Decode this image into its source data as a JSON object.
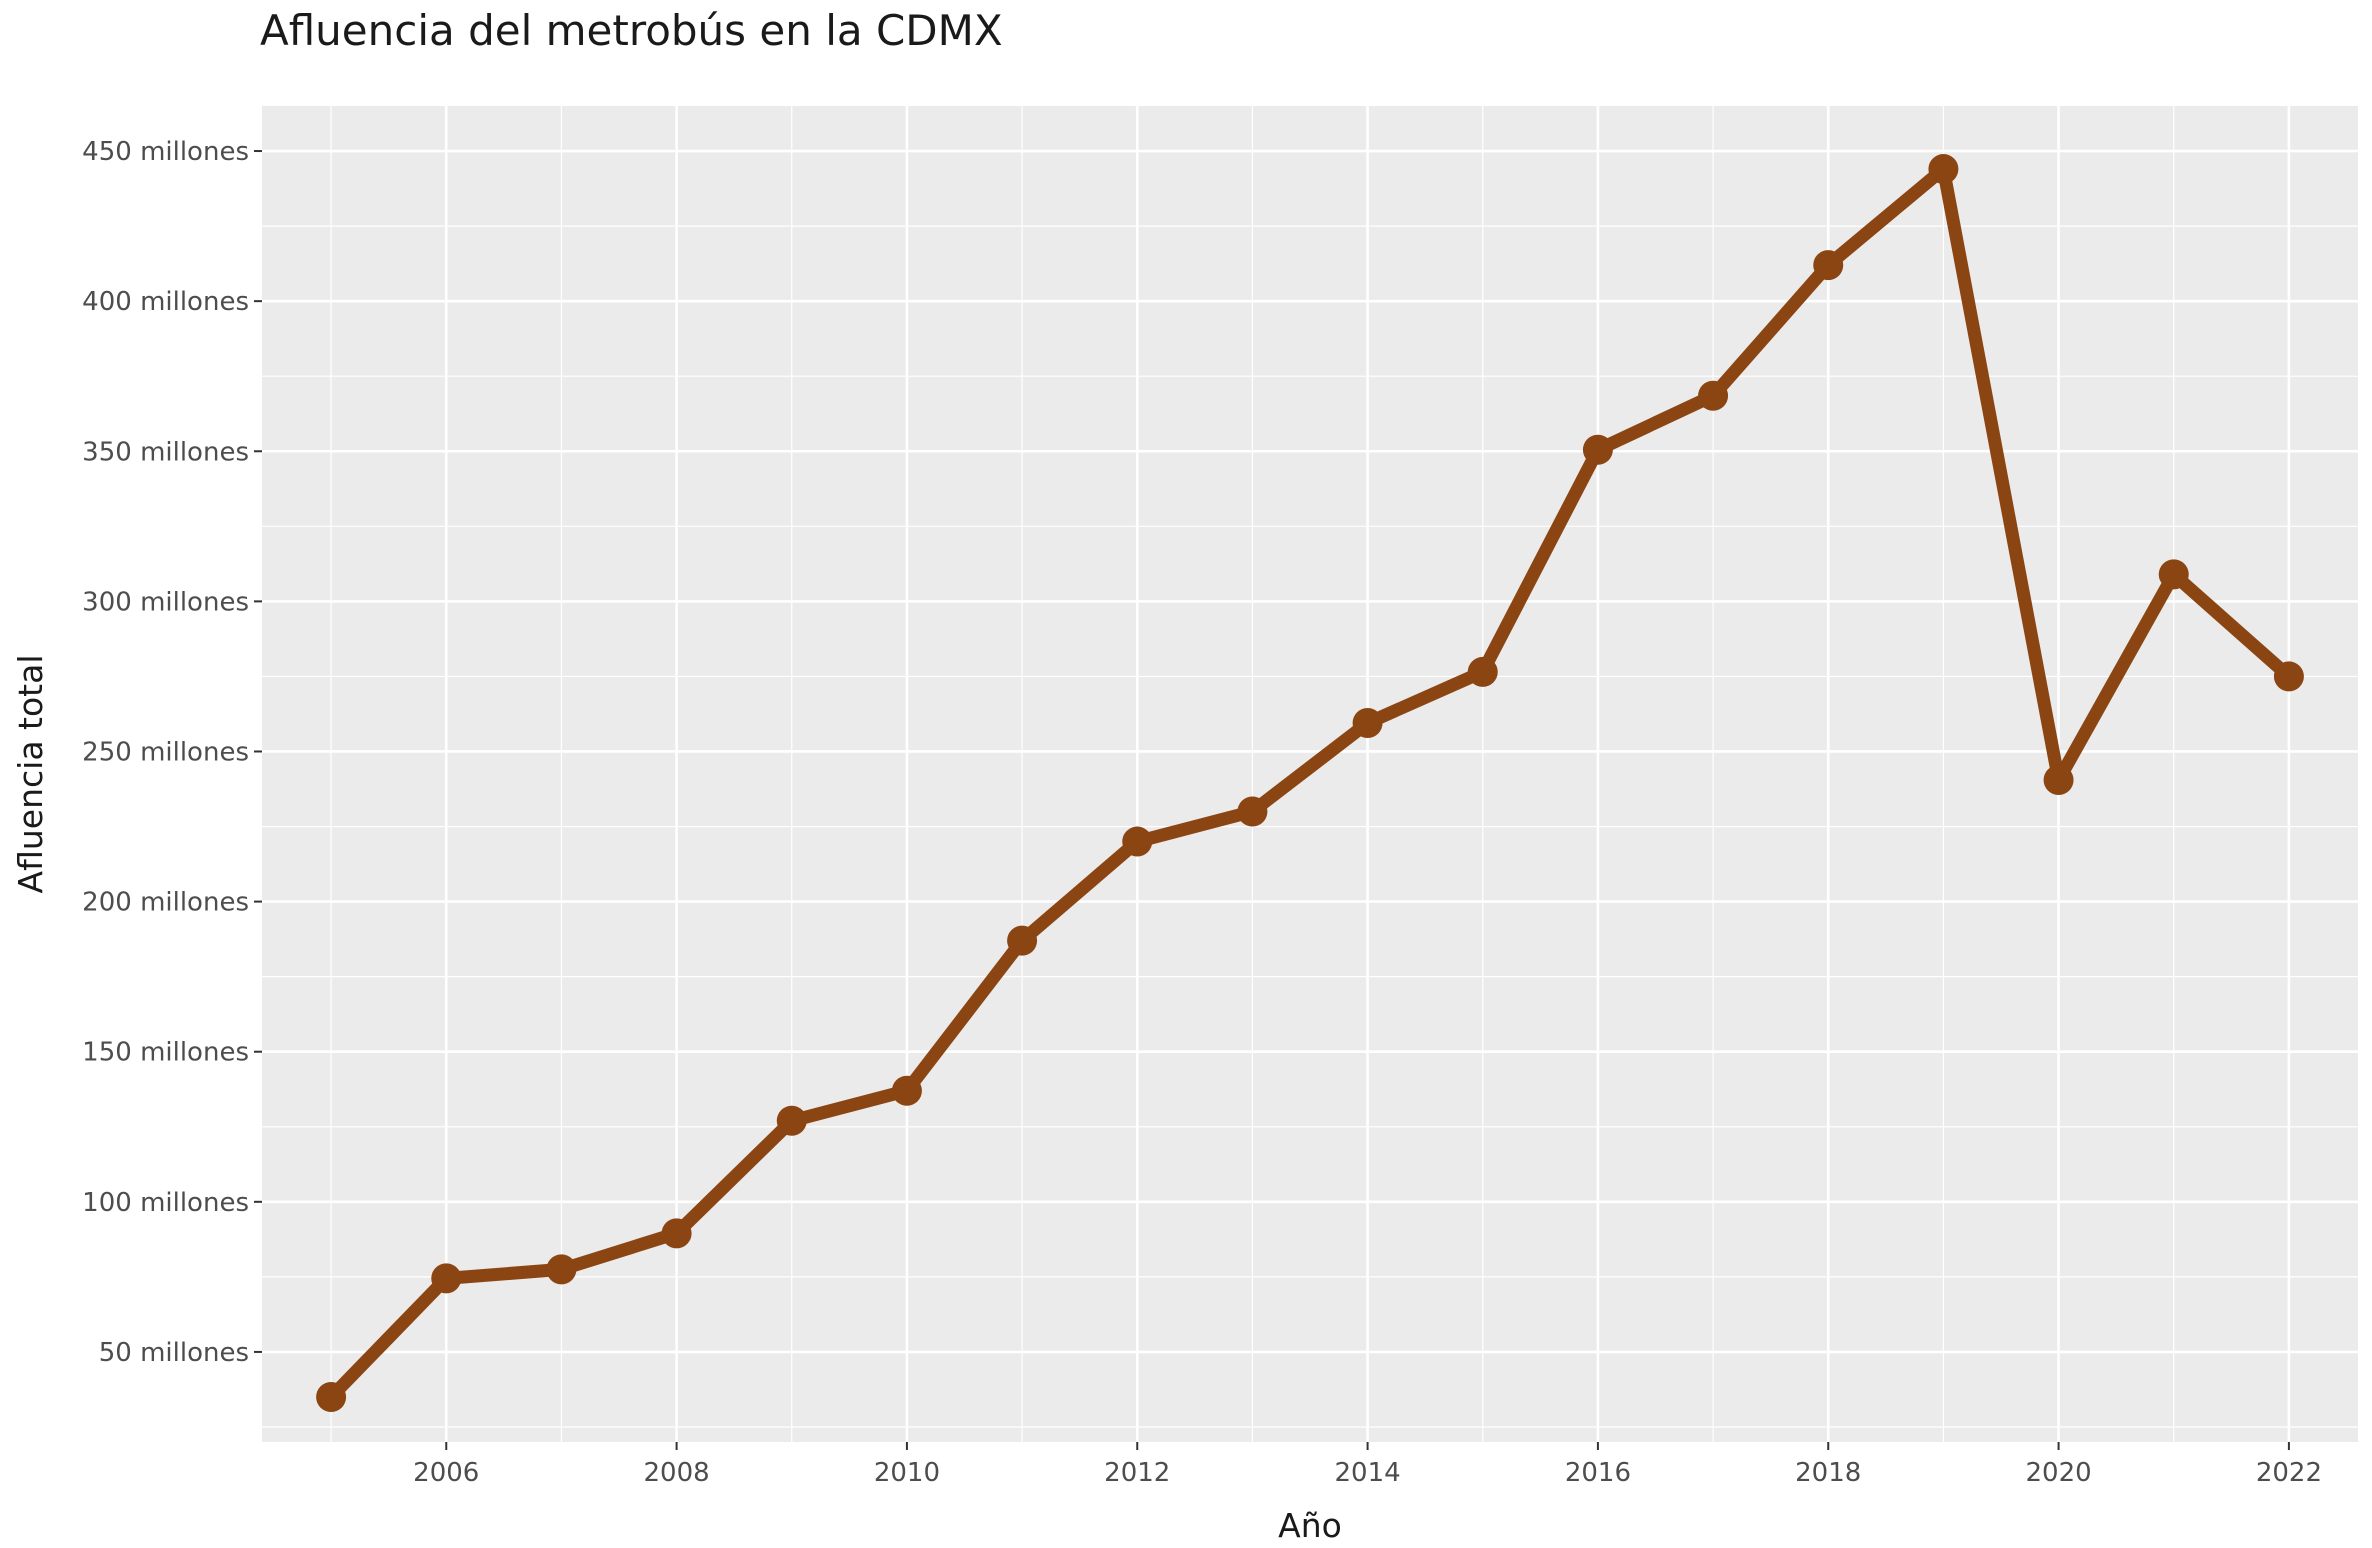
{
  "chart_data": {
    "type": "line",
    "title": "Afluencia del metrobús en la CDMX",
    "xlabel": "Año",
    "ylabel": "Afluencia total",
    "x": [
      2005,
      2006,
      2007,
      2008,
      2009,
      2010,
      2011,
      2012,
      2013,
      2014,
      2015,
      2016,
      2017,
      2018,
      2019,
      2020,
      2021,
      2022
    ],
    "series": [
      {
        "values": [
          35,
          74.5,
          77.5,
          89.5,
          127,
          137,
          187,
          220,
          230,
          259.5,
          276.5,
          350.5,
          368.5,
          412,
          444,
          240.5,
          309,
          275
        ],
        "color": "#8b4513"
      }
    ],
    "x_ticks": [
      2006,
      2008,
      2010,
      2012,
      2014,
      2016,
      2018,
      2020,
      2022
    ],
    "x_tick_labels": [
      "2006",
      "2008",
      "2010",
      "2012",
      "2014",
      "2016",
      "2018",
      "2020",
      "2022"
    ],
    "y_ticks": [
      50,
      100,
      150,
      200,
      250,
      300,
      350,
      400,
      450
    ],
    "y_tick_labels": [
      "50 millones",
      "100 millones",
      "150 millones",
      "200 millones",
      "250 millones",
      "300 millones",
      "350 millones",
      "400 millones",
      "450 millones"
    ],
    "y_unit": "millones",
    "xlim": [
      2004.4,
      2022.6
    ],
    "ylim": [
      20,
      465
    ],
    "grid": true,
    "panel_color": "#ebebeb",
    "grid_color": "#ffffff"
  }
}
